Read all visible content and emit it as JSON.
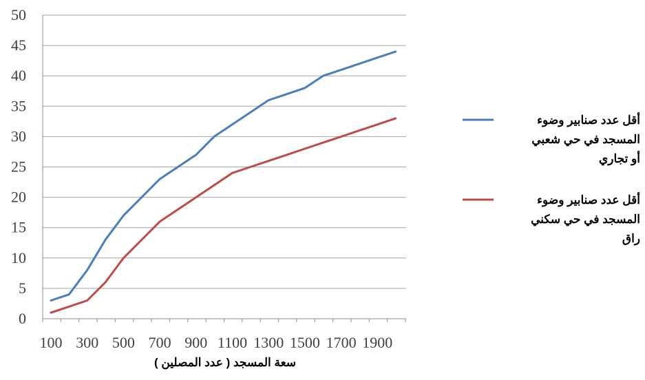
{
  "chart_data": {
    "type": "line",
    "x": [
      100,
      200,
      300,
      400,
      500,
      600,
      700,
      800,
      900,
      1000,
      1100,
      1200,
      1300,
      1400,
      1500,
      1600,
      1700,
      1800,
      1900,
      2000
    ],
    "x_tick_labels": [
      "100",
      "300",
      "500",
      "700",
      "900",
      "1100",
      "1300",
      "1500",
      "1700",
      "1900"
    ],
    "y_tick_labels": [
      "0",
      "5",
      "10",
      "15",
      "20",
      "25",
      "30",
      "35",
      "40",
      "45",
      "50"
    ],
    "ylim": [
      0,
      50
    ],
    "xlabel": "سعة المسجد ( عدد المصلين )",
    "ylabel": "",
    "title": "",
    "grid": "horizontal",
    "legend_position": "right",
    "series": [
      {
        "name": "أقل عدد صنابير وضوء المسجد في حي شعبي أو تجاري",
        "legend_lines": [
          "أقل عدد صنابير وضوء",
          "المسجد في حي شعبي",
          "أو تجاري"
        ],
        "color": "#4A7EBB",
        "values": [
          3,
          4,
          8,
          13,
          17,
          20,
          23,
          25,
          27,
          30,
          32,
          34,
          36,
          37,
          38,
          40,
          41,
          42,
          43,
          44
        ]
      },
      {
        "name": "أقل عدد صنابير وضوء المسجد في حي سكني راق",
        "legend_lines": [
          "أقل عدد صنابير وضوء",
          "المسجد في حي سكني",
          "راق"
        ],
        "color": "#BE4B48",
        "values": [
          1,
          2,
          3,
          6,
          10,
          13,
          16,
          18,
          20,
          22,
          24,
          25,
          26,
          27,
          28,
          29,
          30,
          31,
          32,
          33
        ]
      }
    ]
  }
}
